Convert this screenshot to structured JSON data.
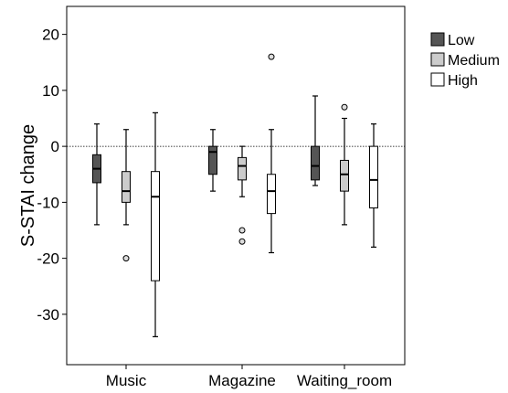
{
  "chart_data": {
    "type": "boxplot",
    "title": "",
    "xlabel": "",
    "ylabel": "S-STAI change",
    "ylim": [
      -39,
      25
    ],
    "yticks": [
      20,
      10,
      0,
      -10,
      -20,
      -30
    ],
    "reference_line": 0,
    "legend_position": "right",
    "categories": [
      "Music",
      "Magazine",
      "Waiting_room"
    ],
    "series": [
      {
        "name": "Low",
        "color": "#555555",
        "boxes": [
          {
            "whisker_low": -14,
            "q1": -6.5,
            "median": -4,
            "q3": -1.5,
            "whisker_high": 4,
            "outliers": []
          },
          {
            "whisker_low": -8,
            "q1": -5,
            "median": -1,
            "q3": 0,
            "whisker_high": 3,
            "outliers": []
          },
          {
            "whisker_low": -7,
            "q1": -6,
            "median": -3.5,
            "q3": 0,
            "whisker_high": 9,
            "outliers": []
          }
        ]
      },
      {
        "name": "Medium",
        "color": "#cccccc",
        "boxes": [
          {
            "whisker_low": -14,
            "q1": -10,
            "median": -8,
            "q3": -4.5,
            "whisker_high": 3,
            "outliers": [
              -20
            ]
          },
          {
            "whisker_low": -9,
            "q1": -6,
            "median": -3.5,
            "q3": -2,
            "whisker_high": 0,
            "outliers": [
              -15,
              -17
            ]
          },
          {
            "whisker_low": -14,
            "q1": -8,
            "median": -5,
            "q3": -2.5,
            "whisker_high": 5,
            "outliers": [
              7
            ]
          }
        ]
      },
      {
        "name": "High",
        "color": "#ffffff",
        "boxes": [
          {
            "whisker_low": -34,
            "q1": -24,
            "median": -9,
            "q3": -4.5,
            "whisker_high": 6,
            "outliers": []
          },
          {
            "whisker_low": -19,
            "q1": -12,
            "median": -8,
            "q3": -5,
            "whisker_high": 3,
            "outliers": [
              16
            ]
          },
          {
            "whisker_low": -18,
            "q1": -11,
            "median": -6,
            "q3": 0,
            "whisker_high": 4,
            "outliers": []
          }
        ]
      }
    ]
  }
}
